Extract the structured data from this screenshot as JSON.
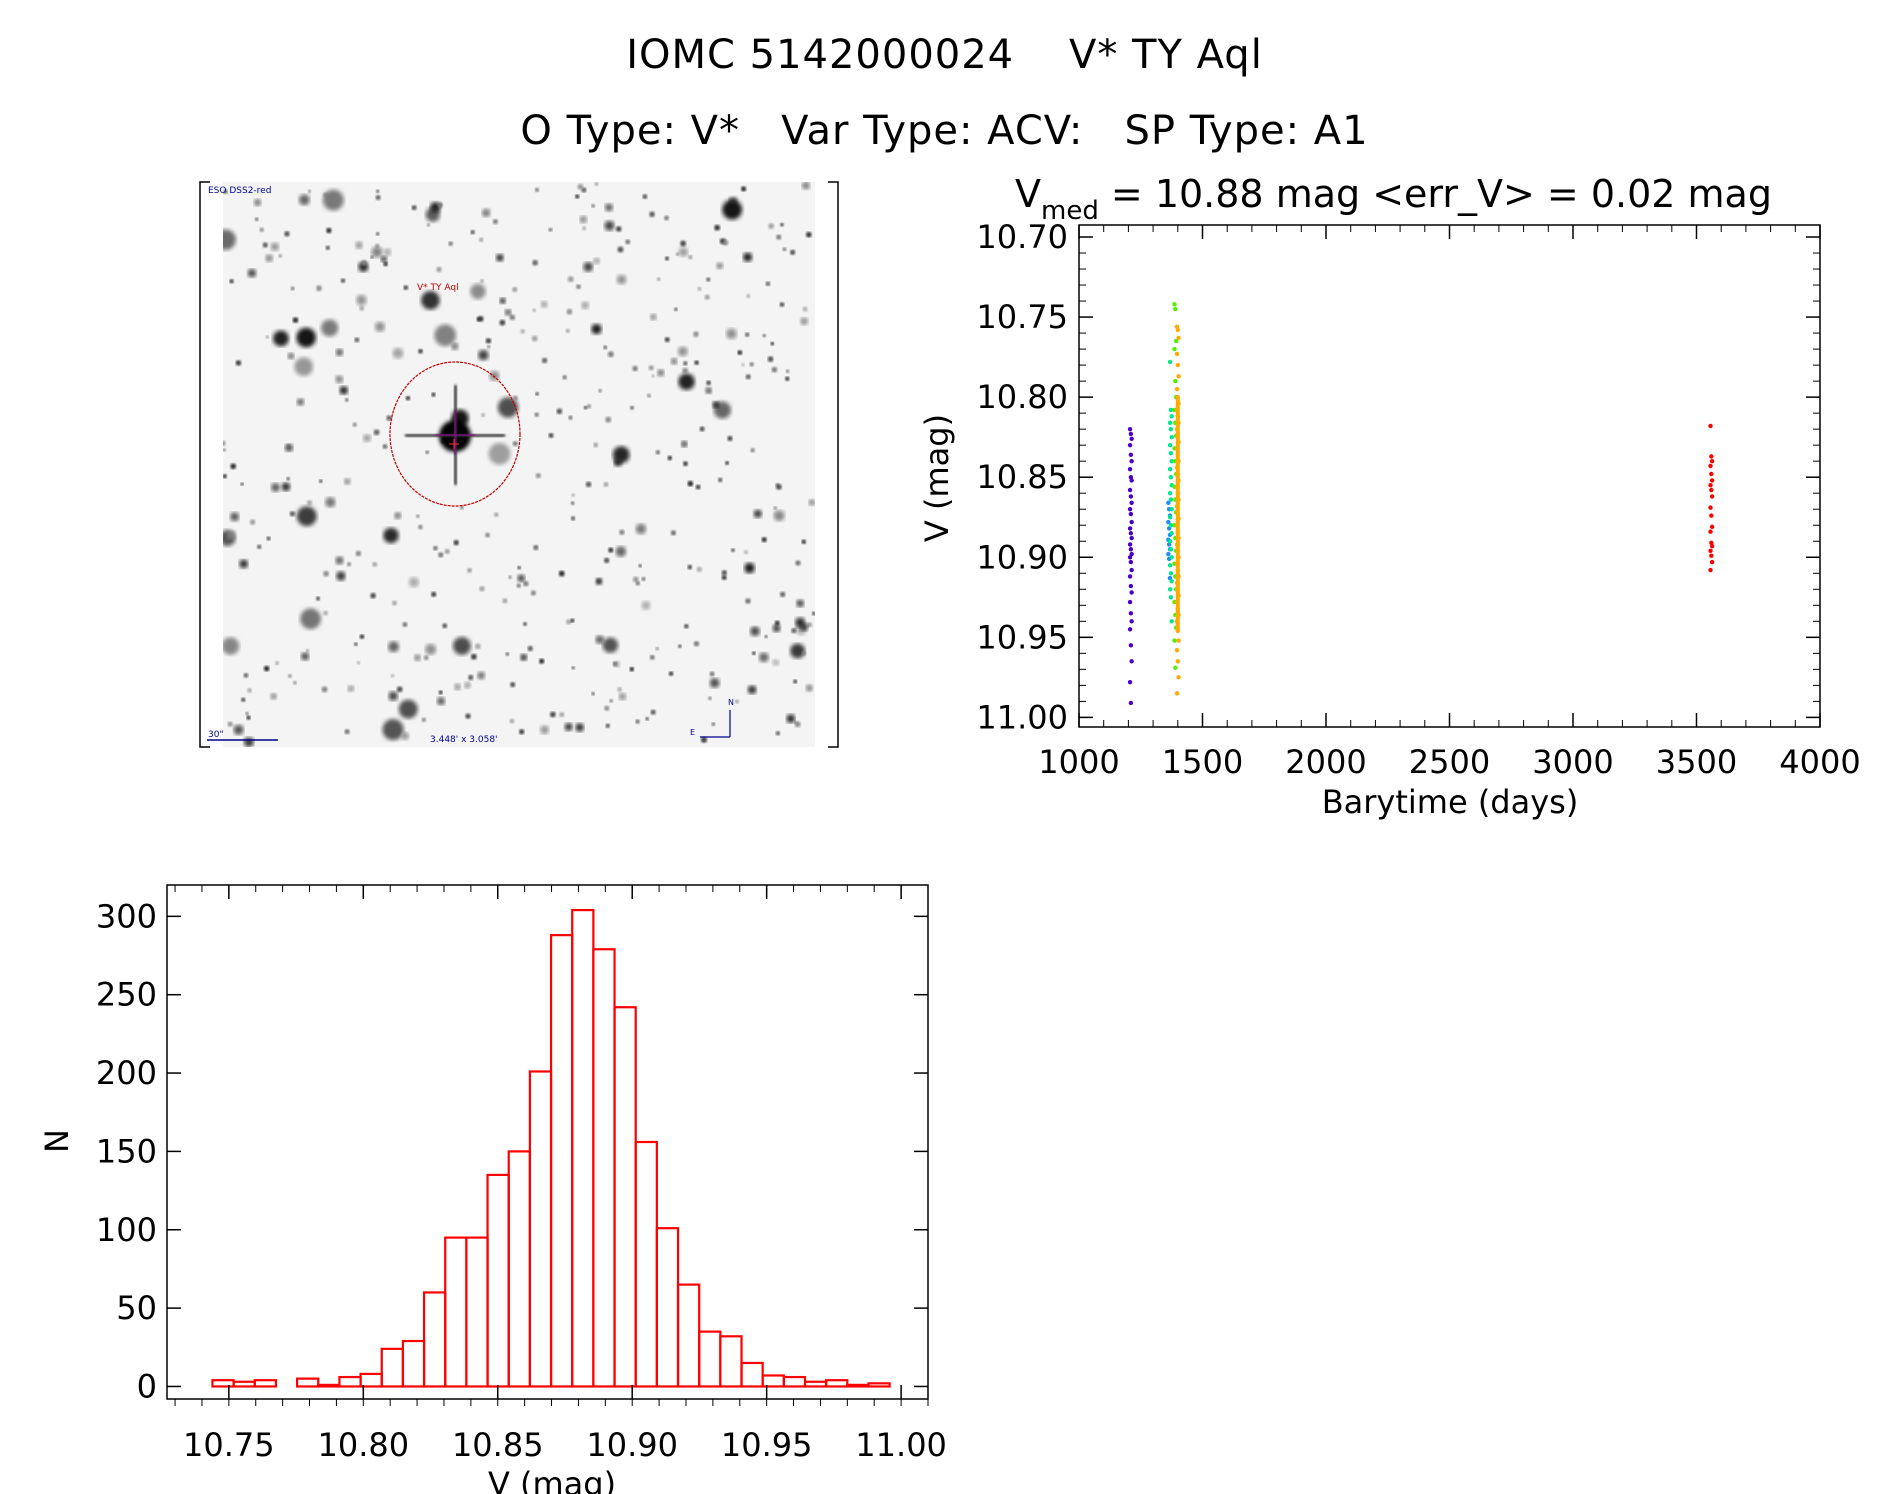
{
  "header": {
    "title_line1": "IOMC 5142000024    V* TY Aql",
    "title_line2": "O Type: V*   Var Type: ACV:   SP Type: A1"
  },
  "finder_image": {
    "survey_label": "ESO DSS2-red",
    "target_label": "V* TY Aql",
    "scale_bar_label": "30\"",
    "field_size_label": "3.448' x 3.058'",
    "north_label": "N",
    "east_label": "E",
    "label_color": "#00008b",
    "marker_color": "#c00000"
  },
  "chart_data": [
    {
      "type": "scatter",
      "title_prefix": "V",
      "title_subscript": "med",
      "title_suffix": " = 10.88 mag <err_V> = 0.02 mag",
      "xlabel": "Barytime (days)",
      "ylabel": "V (mag)",
      "xlim": [
        1000,
        4000
      ],
      "ylim": [
        11.006,
        10.6925
      ],
      "y_inverted": true,
      "xticks": [
        "1000",
        "1500",
        "2000",
        "2500",
        "3000",
        "3500",
        "4000"
      ],
      "yticks": [
        "10.70",
        "10.75",
        "10.80",
        "10.85",
        "10.90",
        "10.95",
        "11.00"
      ],
      "grid": false,
      "series": [
        {
          "color": "#4b00c8",
          "x": 1210,
          "y": [
            10.82,
            10.823,
            10.826,
            10.83,
            10.836,
            10.84,
            10.845,
            10.85,
            10.852,
            10.858,
            10.862,
            10.866,
            10.87,
            10.873,
            10.878,
            10.882,
            10.885,
            10.888,
            10.892,
            10.895,
            10.898,
            10.9,
            10.903,
            10.908,
            10.912,
            10.918,
            10.922,
            10.928,
            10.935,
            10.94,
            10.945,
            10.955,
            10.965,
            10.978,
            10.991
          ]
        },
        {
          "color": "#1e8cff",
          "x": 1365,
          "y": [
            10.866,
            10.87,
            10.874,
            10.878,
            10.882,
            10.886,
            10.889,
            10.892,
            10.895,
            10.898,
            10.901,
            10.913
          ]
        },
        {
          "color": "#00e68c",
          "x": 1372,
          "y": [
            10.778,
            10.808,
            10.812,
            10.816,
            10.82,
            10.825,
            10.83,
            10.835,
            10.84,
            10.845,
            10.85,
            10.855,
            10.86,
            10.864,
            10.87,
            10.875,
            10.88,
            10.885,
            10.89,
            10.895,
            10.9,
            10.905,
            10.91,
            10.915,
            10.92,
            10.925,
            10.94
          ]
        },
        {
          "color": "#50f000",
          "x": 1390,
          "y": [
            10.742,
            10.745,
            10.765,
            10.77,
            10.79,
            10.8,
            10.808,
            10.816,
            10.824,
            10.832,
            10.84,
            10.848,
            10.856,
            10.864,
            10.872,
            10.88,
            10.888,
            10.896,
            10.904,
            10.912,
            10.92,
            10.928,
            10.936,
            10.944,
            10.952,
            10.969
          ]
        },
        {
          "color": "#ffaa00",
          "x": 1400,
          "y": [
            10.756,
            10.758,
            10.763,
            10.773,
            10.78,
            10.787,
            10.795,
            10.8,
            10.804,
            10.808,
            10.812,
            10.816,
            10.82,
            10.824,
            10.828,
            10.832,
            10.836,
            10.84,
            10.844,
            10.848,
            10.852,
            10.856,
            10.86,
            10.864,
            10.868,
            10.872,
            10.876,
            10.88,
            10.884,
            10.888,
            10.892,
            10.896,
            10.9,
            10.904,
            10.908,
            10.912,
            10.916,
            10.92,
            10.924,
            10.928,
            10.932,
            10.936,
            10.94,
            10.946,
            10.952,
            10.958,
            10.965,
            10.975,
            10.985
          ]
        },
        {
          "color": "#ff0000",
          "x": 3560,
          "y": [
            10.818,
            10.837,
            10.84,
            10.843,
            10.848,
            10.852,
            10.855,
            10.858,
            10.862,
            10.869,
            10.874,
            10.881,
            10.884,
            10.891,
            10.893,
            10.896,
            10.899,
            10.903,
            10.908
          ]
        }
      ]
    },
    {
      "type": "bar",
      "subtype": "histogram",
      "xlabel": "V (mag)",
      "ylabel": "N",
      "xlim": [
        10.727,
        11.01
      ],
      "ylim": [
        -8,
        320
      ],
      "xticks": [
        "10.75",
        "10.80",
        "10.85",
        "10.90",
        "10.95",
        "11.00"
      ],
      "yticks": [
        "0",
        "50",
        "100",
        "150",
        "200",
        "250",
        "300"
      ],
      "grid": false,
      "bar_color": "#ff0000",
      "bin_start": 10.7439,
      "bin_width": 0.00787,
      "values": [
        4,
        3,
        4,
        0,
        5,
        1,
        6,
        8,
        24,
        29,
        60,
        95,
        95,
        135,
        150,
        201,
        288,
        304,
        279,
        242,
        156,
        101,
        65,
        35,
        32,
        15,
        7,
        6,
        3,
        4,
        1,
        2
      ]
    }
  ]
}
